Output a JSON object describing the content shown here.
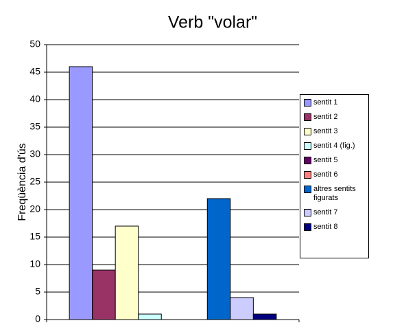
{
  "chart_data": {
    "type": "bar",
    "title": "Verb \"volar\"",
    "y_label": "Freqüència d'ús",
    "categories": [
      null
    ],
    "series": [
      {
        "name": "sentit 1",
        "color": "#9999ff",
        "values": [
          46
        ]
      },
      {
        "name": "sentit 2",
        "color": "#993366",
        "values": [
          9
        ]
      },
      {
        "name": "sentit 3",
        "color": "#ffffcc",
        "values": [
          17
        ]
      },
      {
        "name": "sentit 4 (fig.)",
        "color": "#ccffff",
        "values": [
          1
        ]
      },
      {
        "name": "sentit 5",
        "color": "#660066",
        "values": [
          0
        ]
      },
      {
        "name": "sentit 6",
        "color": "#ff8080",
        "values": [
          0
        ]
      },
      {
        "name": "altres sentits figurats",
        "color": "#0066cc",
        "values": [
          22
        ]
      },
      {
        "name": "sentit 7",
        "color": "#ccccff",
        "values": [
          4
        ]
      },
      {
        "name": "sentit 8",
        "color": "#000080",
        "values": [
          1
        ]
      }
    ],
    "ylim": [
      0,
      50
    ],
    "yticks": [
      0,
      5,
      10,
      15,
      20,
      25,
      30,
      35,
      40,
      45,
      50
    ],
    "grid": true,
    "legend": "right"
  }
}
